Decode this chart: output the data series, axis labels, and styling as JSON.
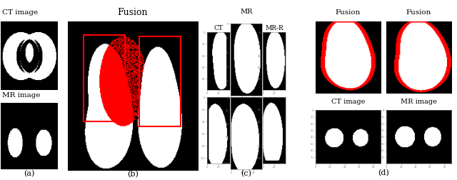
{
  "title_a": "(a)",
  "title_b": "(b)",
  "title_c": "(c)",
  "title_d": "(d)",
  "label_ct_image": "CT image",
  "label_mr_image": "MR image",
  "label_fusion_b": "Fusion",
  "label_mr": "MR",
  "label_ct": "CT",
  "label_mr_r": "MR-R",
  "label_fusion_d1": "Fusion",
  "label_fusion_d2": "Fusion",
  "label_ct_image_d": "CT image",
  "label_mr_image_d": "MR image",
  "bg_color": "#000000",
  "white": "#ffffff",
  "red": "#ff0000"
}
